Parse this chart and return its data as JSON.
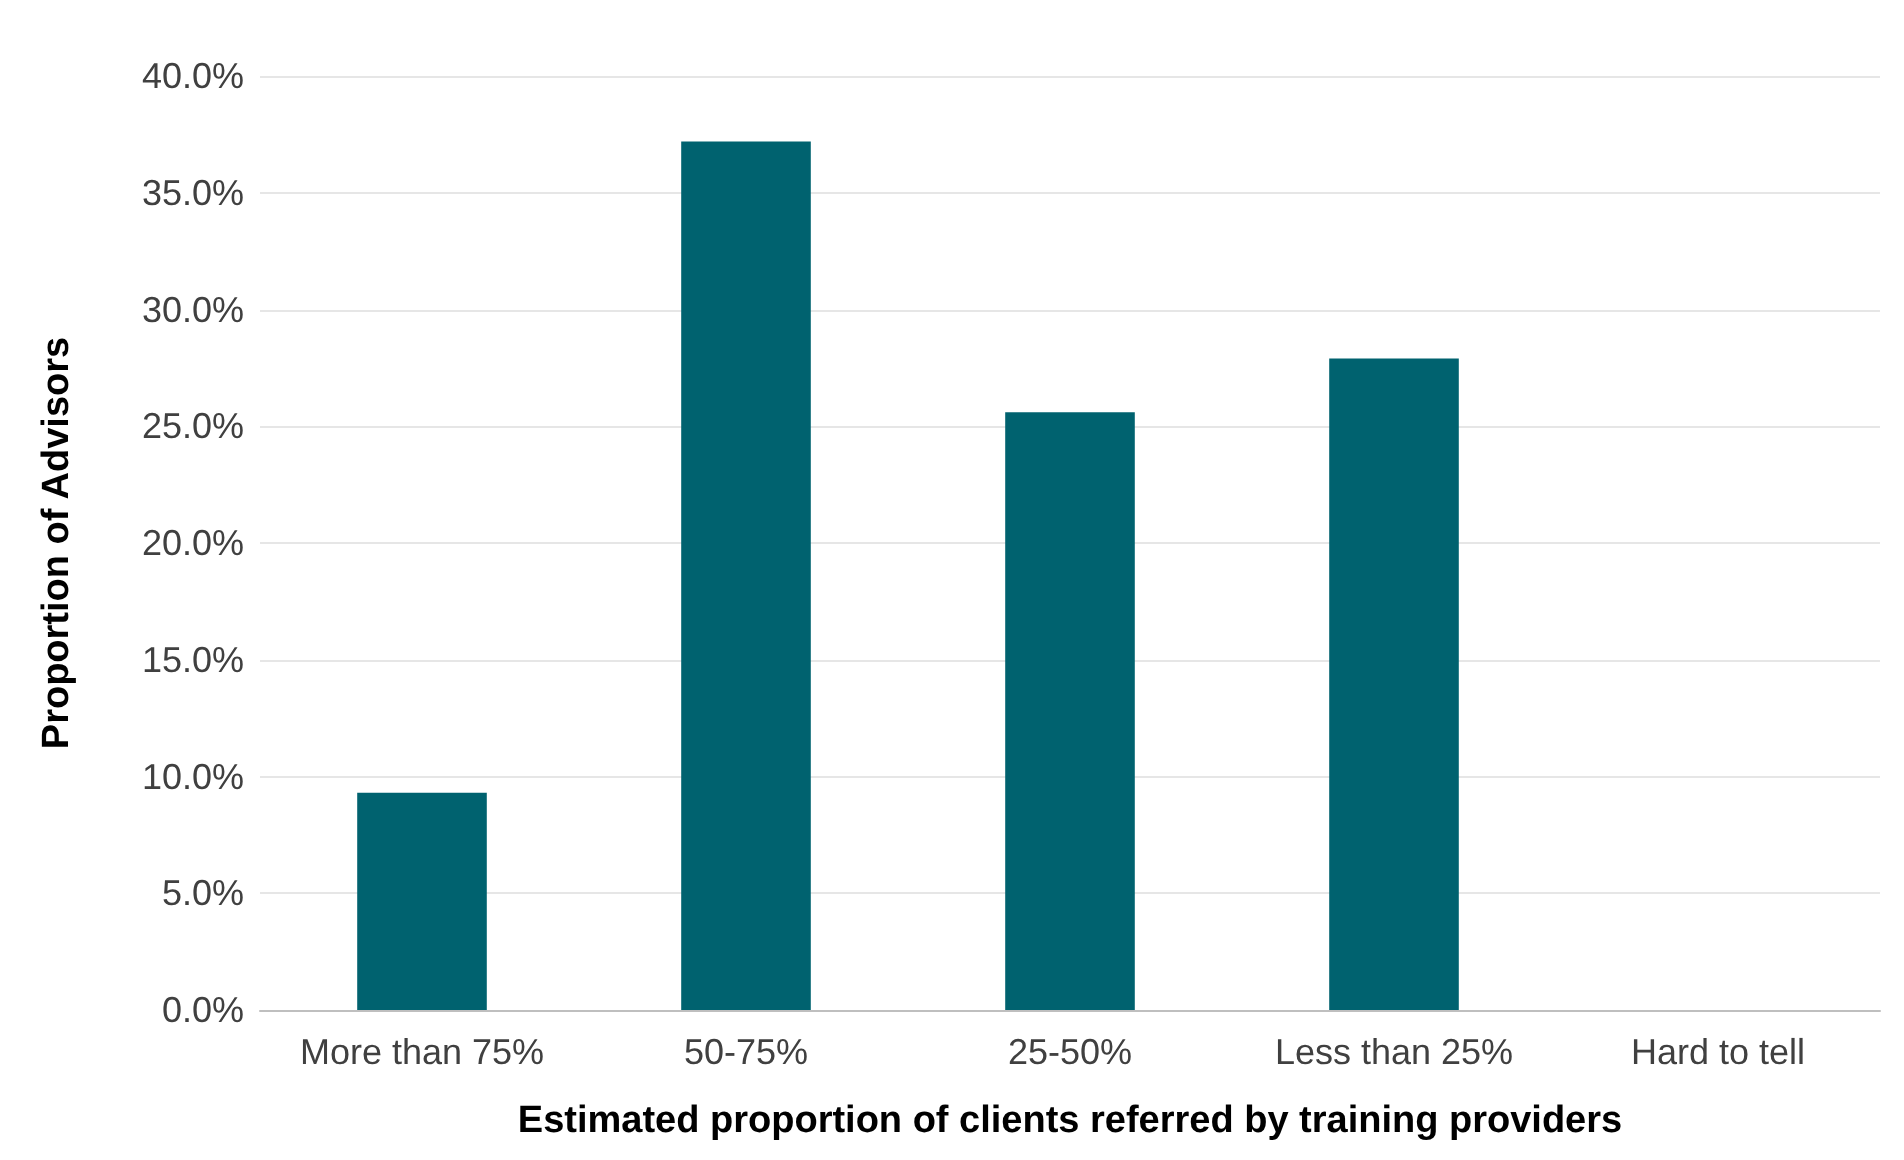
{
  "chart_data": {
    "type": "bar",
    "xlabel": "Estimated proportion of clients referred by training providers",
    "ylabel": "Proportion of Advisors",
    "categories": [
      "More than 75%",
      "50-75%",
      "25-50%",
      "Less than 25%",
      "Hard to tell"
    ],
    "values": [
      9.3,
      37.2,
      25.6,
      27.9,
      0
    ],
    "color": "#00626f",
    "ylim": [
      0,
      40
    ],
    "yticks": [
      {
        "value": 0,
        "label": "0.0%"
      },
      {
        "value": 5,
        "label": "5.0%"
      },
      {
        "value": 10,
        "label": "10.0%"
      },
      {
        "value": 15,
        "label": "15.0%"
      },
      {
        "value": 20,
        "label": "20.0%"
      },
      {
        "value": 25,
        "label": "25.0%"
      },
      {
        "value": 30,
        "label": "30.0%"
      },
      {
        "value": 35,
        "label": "35.0%"
      },
      {
        "value": 40,
        "label": "40.0%"
      }
    ],
    "grid": "y"
  }
}
